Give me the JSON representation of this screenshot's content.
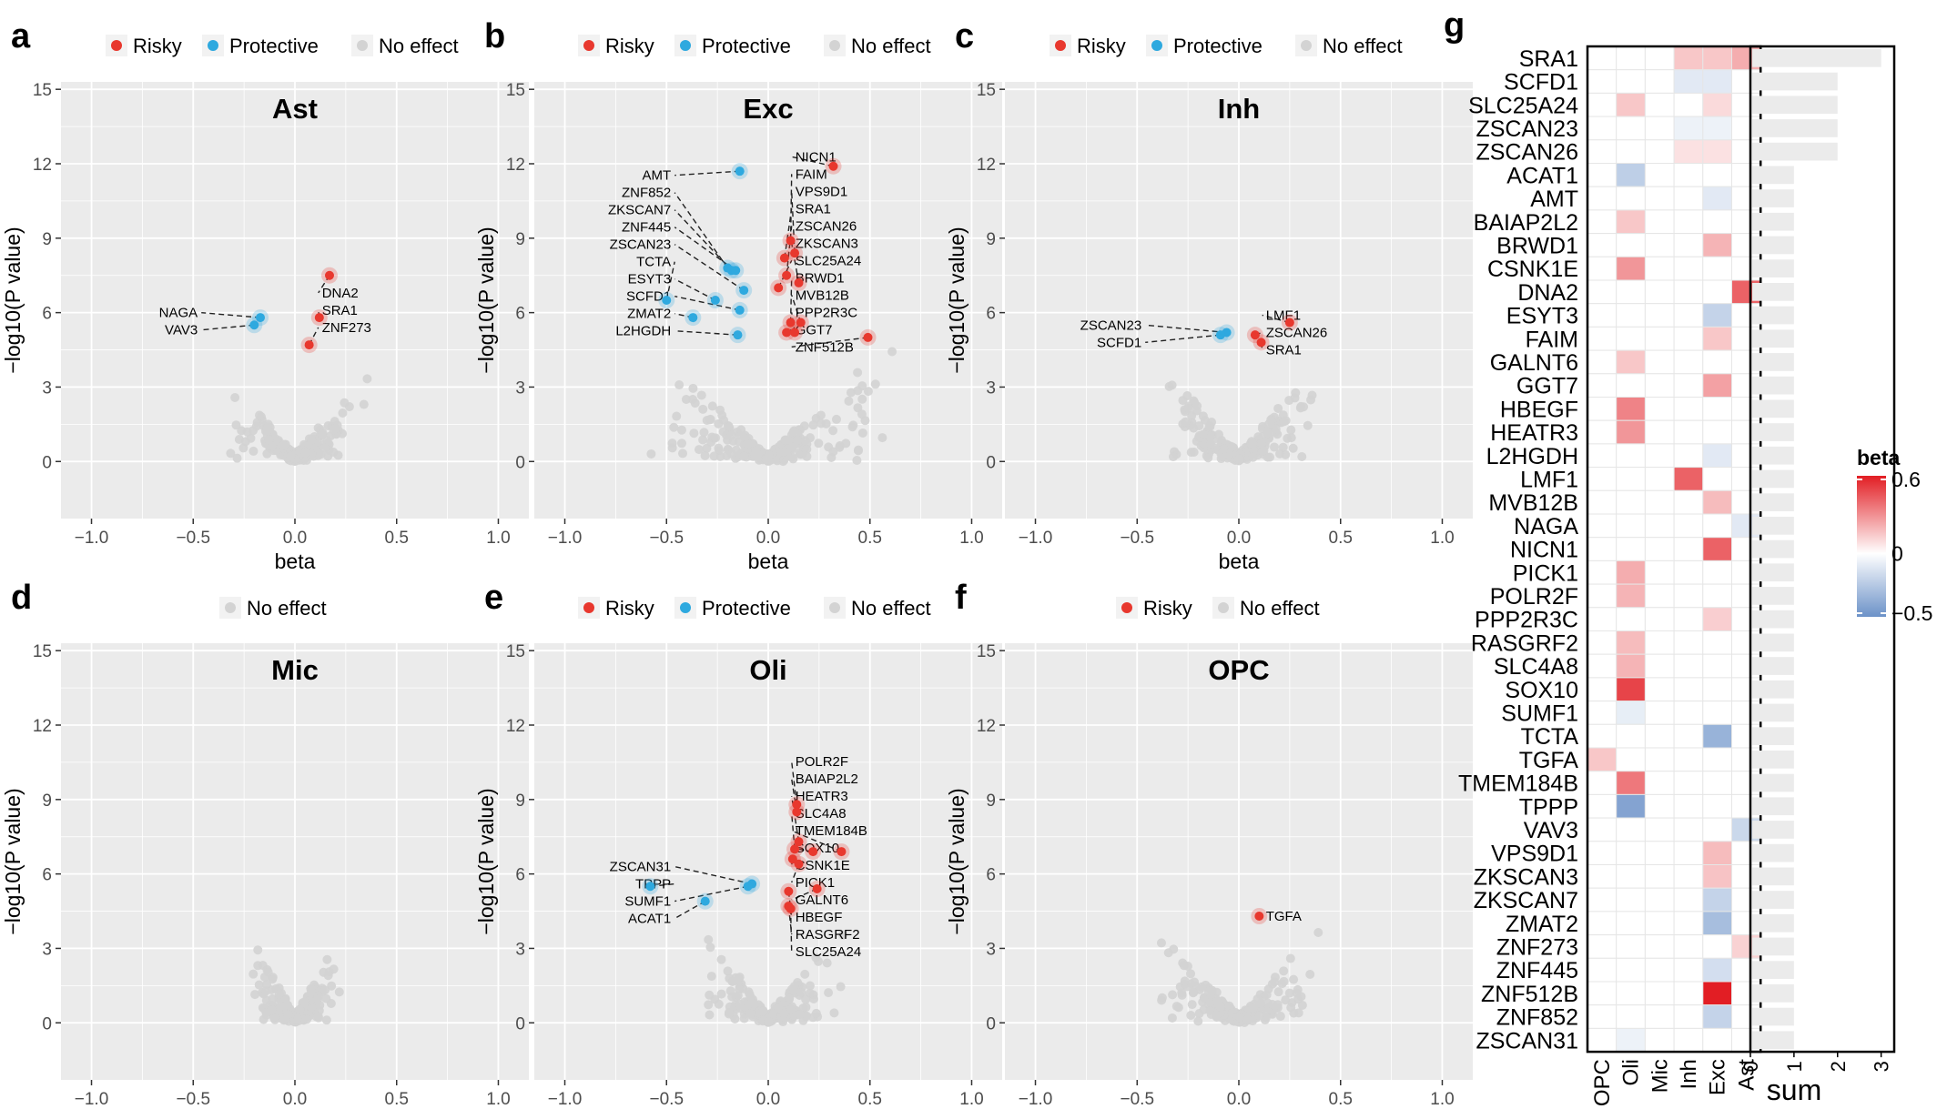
{
  "figure": {
    "panel_letters": [
      "a",
      "b",
      "c",
      "d",
      "e",
      "f",
      "g"
    ],
    "legend_labels": {
      "risky": "Risky",
      "protective": "Protective",
      "none": "No effect"
    },
    "colors": {
      "risky": "#e8382e",
      "protective": "#2ea9df",
      "none": "#d3d3d3",
      "panel_bg": "#ebebeb",
      "grid": "#ffffff"
    }
  },
  "chart_data": [
    {
      "type": "scatter",
      "panel": "a",
      "title": "Ast",
      "xlabel": "beta",
      "ylabel": "−log10(P value)",
      "xlim": [
        -1.15,
        1.15
      ],
      "ylim": [
        -2.3,
        15.3
      ],
      "xticks": [
        "−1.0",
        "−0.5",
        "0.0",
        "0.5",
        "1.0"
      ],
      "yticks": [
        "0",
        "3",
        "6",
        "9",
        "12",
        "15"
      ],
      "legend": [
        "risky",
        "protective",
        "none"
      ],
      "null_cloud": {
        "x_spread": 0.38,
        "y_max": 3.5
      },
      "points": [
        {
          "gene": "DNA2",
          "beta": 0.17,
          "logp": 7.5,
          "effect": "risky",
          "side": "right"
        },
        {
          "gene": "SRA1",
          "beta": 0.12,
          "logp": 5.8,
          "effect": "risky",
          "side": "right"
        },
        {
          "gene": "ZNF273",
          "beta": 0.07,
          "logp": 4.7,
          "effect": "risky",
          "side": "right"
        },
        {
          "gene": "NAGA",
          "beta": -0.17,
          "logp": 5.8,
          "effect": "protective",
          "side": "left"
        },
        {
          "gene": "VAV3",
          "beta": -0.2,
          "logp": 5.5,
          "effect": "protective",
          "side": "left"
        }
      ]
    },
    {
      "type": "scatter",
      "panel": "b",
      "title": "Exc",
      "xlabel": "beta",
      "ylabel": "−log10(P value)",
      "xlim": [
        -1.15,
        1.15
      ],
      "ylim": [
        -2.3,
        15.3
      ],
      "xticks": [
        "−1.0",
        "−0.5",
        "0.0",
        "0.5",
        "1.0"
      ],
      "yticks": [
        "0",
        "3",
        "6",
        "9",
        "12",
        "15"
      ],
      "legend": [
        "risky",
        "protective",
        "none"
      ],
      "null_cloud": {
        "x_spread": 0.7,
        "y_max": 5.0
      },
      "points": [
        {
          "gene": "AMT",
          "beta": -0.14,
          "logp": 11.7,
          "effect": "protective",
          "side": "left"
        },
        {
          "gene": "NICN1",
          "beta": 0.32,
          "logp": 11.9,
          "effect": "risky",
          "side": "right"
        },
        {
          "gene": "FAIM",
          "beta": 0.11,
          "logp": 8.9,
          "effect": "risky",
          "side": "right"
        },
        {
          "gene": "SRA1",
          "beta": 0.08,
          "logp": 8.2,
          "effect": "risky",
          "side": "right"
        },
        {
          "gene": "VPS9D1",
          "beta": 0.13,
          "logp": 8.4,
          "effect": "risky",
          "side": "right"
        },
        {
          "gene": "ZKSCAN3",
          "beta": 0.15,
          "logp": 7.2,
          "effect": "risky",
          "side": "right"
        },
        {
          "gene": "ZSCAN26",
          "beta": 0.09,
          "logp": 7.5,
          "effect": "risky",
          "side": "right"
        },
        {
          "gene": "SLC25A24",
          "beta": 0.05,
          "logp": 7.0,
          "effect": "risky",
          "side": "right"
        },
        {
          "gene": "BRWD1",
          "beta": 0.11,
          "logp": 5.6,
          "effect": "risky",
          "side": "right"
        },
        {
          "gene": "MVB12B",
          "beta": 0.16,
          "logp": 5.6,
          "effect": "risky",
          "side": "right"
        },
        {
          "gene": "PPP2R3C",
          "beta": 0.13,
          "logp": 5.2,
          "effect": "risky",
          "side": "right"
        },
        {
          "gene": "ZNF512B",
          "beta": 0.49,
          "logp": 5.0,
          "effect": "risky",
          "side": "right"
        },
        {
          "gene": "GGT7",
          "beta": 0.09,
          "logp": 5.2,
          "effect": "risky",
          "side": "right"
        },
        {
          "gene": "ZNF852",
          "beta": -0.2,
          "logp": 7.8,
          "effect": "protective",
          "side": "left"
        },
        {
          "gene": "ZKSCAN7",
          "beta": -0.18,
          "logp": 7.7,
          "effect": "protective",
          "side": "left"
        },
        {
          "gene": "ZNF445",
          "beta": -0.16,
          "logp": 7.7,
          "effect": "protective",
          "side": "left"
        },
        {
          "gene": "ZSCAN23",
          "beta": -0.12,
          "logp": 6.9,
          "effect": "protective",
          "side": "left"
        },
        {
          "gene": "TCTA",
          "beta": -0.5,
          "logp": 6.5,
          "effect": "protective",
          "side": "left"
        },
        {
          "gene": "ESYT3",
          "beta": -0.26,
          "logp": 6.5,
          "effect": "protective",
          "side": "left"
        },
        {
          "gene": "ZMAT2",
          "beta": -0.37,
          "logp": 5.8,
          "effect": "protective",
          "side": "left"
        },
        {
          "gene": "SCFD1",
          "beta": -0.14,
          "logp": 6.1,
          "effect": "protective",
          "side": "left"
        },
        {
          "gene": "L2HGDH",
          "beta": -0.15,
          "logp": 5.1,
          "effect": "protective",
          "side": "left"
        }
      ]
    },
    {
      "type": "scatter",
      "panel": "c",
      "title": "Inh",
      "xlabel": "beta",
      "ylabel": "−log10(P value)",
      "xlim": [
        -1.15,
        1.15
      ],
      "ylim": [
        -2.3,
        15.3
      ],
      "xticks": [
        "−1.0",
        "−0.5",
        "0.0",
        "0.5",
        "1.0"
      ],
      "yticks": [
        "0",
        "3",
        "6",
        "9",
        "12",
        "15"
      ],
      "legend": [
        "risky",
        "protective",
        "none"
      ],
      "null_cloud": {
        "x_spread": 0.42,
        "y_max": 3.9
      },
      "points": [
        {
          "gene": "LMF1",
          "beta": 0.25,
          "logp": 5.6,
          "effect": "risky",
          "side": "right"
        },
        {
          "gene": "ZSCAN26",
          "beta": 0.08,
          "logp": 5.1,
          "effect": "risky",
          "side": "right"
        },
        {
          "gene": "SRA1",
          "beta": 0.11,
          "logp": 4.8,
          "effect": "risky",
          "side": "right"
        },
        {
          "gene": "ZSCAN23",
          "beta": -0.06,
          "logp": 5.2,
          "effect": "protective",
          "side": "left"
        },
        {
          "gene": "SCFD1",
          "beta": -0.09,
          "logp": 5.1,
          "effect": "protective",
          "side": "left"
        }
      ]
    },
    {
      "type": "scatter",
      "panel": "d",
      "title": "Mic",
      "xlabel": "beta",
      "ylabel": "−log10(P value)",
      "xlim": [
        -1.15,
        1.15
      ],
      "ylim": [
        -2.3,
        15.3
      ],
      "xticks": [
        "−1.0",
        "−0.5",
        "0.0",
        "0.5",
        "1.0"
      ],
      "yticks": [
        "0",
        "3",
        "6",
        "9",
        "12",
        "15"
      ],
      "legend": [
        "none"
      ],
      "null_cloud": {
        "x_spread": 0.25,
        "y_max": 3.6
      },
      "points": []
    },
    {
      "type": "scatter",
      "panel": "e",
      "title": "Oli",
      "xlabel": "beta",
      "ylabel": "−log10(P value)",
      "xlim": [
        -1.15,
        1.15
      ],
      "ylim": [
        -2.3,
        15.3
      ],
      "xticks": [
        "−1.0",
        "−0.5",
        "0.0",
        "0.5",
        "1.0"
      ],
      "yticks": [
        "0",
        "3",
        "6",
        "9",
        "12",
        "15"
      ],
      "legend": [
        "risky",
        "protective",
        "none"
      ],
      "null_cloud": {
        "x_spread": 0.4,
        "y_max": 4.3
      },
      "points": [
        {
          "gene": "POLR2F",
          "beta": 0.14,
          "logp": 8.8,
          "effect": "risky",
          "side": "right"
        },
        {
          "gene": "BAIAP2L2",
          "beta": 0.14,
          "logp": 8.5,
          "effect": "risky",
          "side": "right"
        },
        {
          "gene": "HEATR3",
          "beta": 0.15,
          "logp": 7.3,
          "effect": "risky",
          "side": "right"
        },
        {
          "gene": "SLC4A8",
          "beta": 0.13,
          "logp": 7.0,
          "effect": "risky",
          "side": "right"
        },
        {
          "gene": "TMEM184B",
          "beta": 0.36,
          "logp": 6.9,
          "effect": "risky",
          "side": "right"
        },
        {
          "gene": "SOX10",
          "beta": 0.22,
          "logp": 6.9,
          "effect": "risky",
          "side": "right"
        },
        {
          "gene": "CSNK1E",
          "beta": 0.12,
          "logp": 6.6,
          "effect": "risky",
          "side": "right"
        },
        {
          "gene": "PICK1",
          "beta": 0.15,
          "logp": 6.4,
          "effect": "risky",
          "side": "right"
        },
        {
          "gene": "GALNT6",
          "beta": 0.24,
          "logp": 5.4,
          "effect": "risky",
          "side": "right"
        },
        {
          "gene": "HBEGF",
          "beta": 0.1,
          "logp": 5.3,
          "effect": "risky",
          "side": "right"
        },
        {
          "gene": "RASGRF2",
          "beta": 0.1,
          "logp": 4.7,
          "effect": "risky",
          "side": "right"
        },
        {
          "gene": "SLC25A24",
          "beta": 0.11,
          "logp": 4.6,
          "effect": "risky",
          "side": "right"
        },
        {
          "gene": "ZSCAN31",
          "beta": -0.08,
          "logp": 5.6,
          "effect": "protective",
          "side": "left"
        },
        {
          "gene": "TPPP",
          "beta": -0.58,
          "logp": 5.5,
          "effect": "protective",
          "side": "left"
        },
        {
          "gene": "SUMF1",
          "beta": -0.1,
          "logp": 5.5,
          "effect": "protective",
          "side": "left"
        },
        {
          "gene": "ACAT1",
          "beta": -0.31,
          "logp": 4.9,
          "effect": "protective",
          "side": "left"
        }
      ]
    },
    {
      "type": "scatter",
      "panel": "f",
      "title": "OPC",
      "xlabel": "beta",
      "ylabel": "−log10(P value)",
      "xlim": [
        -1.15,
        1.15
      ],
      "ylim": [
        -2.3,
        15.3
      ],
      "xticks": [
        "−1.0",
        "−0.5",
        "0.0",
        "0.5",
        "1.0"
      ],
      "yticks": [
        "0",
        "3",
        "6",
        "9",
        "12",
        "15"
      ],
      "legend": [
        "risky",
        "none"
      ],
      "null_cloud": {
        "x_spread": 0.42,
        "y_max": 3.6
      },
      "points": [
        {
          "gene": "TGFA",
          "beta": 0.1,
          "logp": 4.3,
          "effect": "risky",
          "side": "right"
        }
      ]
    },
    {
      "type": "heatmap",
      "panel": "g",
      "columns": [
        "OPC",
        "Oli",
        "Mic",
        "Inh",
        "Exc",
        "Ast"
      ],
      "genes": [
        "SRA1",
        "SCFD1",
        "SLC25A24",
        "ZSCAN23",
        "ZSCAN26",
        "ACAT1",
        "AMT",
        "BAIAP2L2",
        "BRWD1",
        "CSNK1E",
        "DNA2",
        "ESYT3",
        "FAIM",
        "GALNT6",
        "GGT7",
        "HBEGF",
        "HEATR3",
        "L2HGDH",
        "LMF1",
        "MVB12B",
        "NAGA",
        "NICN1",
        "PICK1",
        "POLR2F",
        "PPP2R3C",
        "RASGRF2",
        "SLC4A8",
        "SOX10",
        "SUMF1",
        "TCTA",
        "TGFA",
        "TMEM184B",
        "TPPP",
        "VAV3",
        "VPS9D1",
        "ZKSCAN3",
        "ZKSCAN7",
        "ZMAT2",
        "ZNF273",
        "ZNF445",
        "ZNF512B",
        "ZNF852",
        "ZSCAN31"
      ],
      "values": [
        [
          null,
          null,
          null,
          0.15,
          0.15,
          0.22
        ],
        [
          null,
          null,
          null,
          -0.1,
          -0.1,
          null
        ],
        [
          null,
          0.15,
          null,
          null,
          0.1,
          null
        ],
        [
          null,
          null,
          null,
          -0.06,
          -0.06,
          null
        ],
        [
          null,
          null,
          null,
          0.08,
          0.08,
          null
        ],
        [
          null,
          -0.22,
          null,
          null,
          null,
          null
        ],
        [
          null,
          null,
          null,
          null,
          -0.1,
          null
        ],
        [
          null,
          0.15,
          null,
          null,
          null,
          null
        ],
        [
          null,
          null,
          null,
          null,
          0.2,
          null
        ],
        [
          null,
          0.28,
          null,
          null,
          null,
          null
        ],
        [
          null,
          null,
          null,
          null,
          null,
          0.42
        ],
        [
          null,
          null,
          null,
          null,
          -0.2,
          null
        ],
        [
          null,
          null,
          null,
          null,
          0.15,
          null
        ],
        [
          null,
          0.15,
          null,
          null,
          null,
          null
        ],
        [
          null,
          null,
          null,
          null,
          0.25,
          null
        ],
        [
          null,
          0.33,
          null,
          null,
          null,
          null
        ],
        [
          null,
          0.28,
          null,
          null,
          null,
          null
        ],
        [
          null,
          null,
          null,
          null,
          -0.1,
          null
        ],
        [
          null,
          null,
          null,
          0.42,
          null,
          null
        ],
        [
          null,
          null,
          null,
          null,
          0.18,
          null
        ],
        [
          null,
          null,
          null,
          null,
          null,
          -0.1
        ],
        [
          null,
          null,
          null,
          null,
          0.42,
          null
        ],
        [
          null,
          0.22,
          null,
          null,
          null,
          null
        ],
        [
          null,
          0.2,
          null,
          null,
          null,
          null
        ],
        [
          null,
          null,
          null,
          null,
          0.13,
          null
        ],
        [
          null,
          0.18,
          null,
          null,
          null,
          null
        ],
        [
          null,
          0.2,
          null,
          null,
          null,
          null
        ],
        [
          null,
          0.5,
          null,
          null,
          null,
          null
        ],
        [
          null,
          -0.08,
          null,
          null,
          null,
          null
        ],
        [
          null,
          null,
          null,
          null,
          -0.35,
          null
        ],
        [
          0.15,
          null,
          null,
          null,
          null,
          null
        ],
        [
          null,
          0.36,
          null,
          null,
          null,
          null
        ],
        [
          null,
          -0.42,
          null,
          null,
          null,
          null
        ],
        [
          null,
          null,
          null,
          null,
          null,
          -0.18
        ],
        [
          null,
          null,
          null,
          null,
          0.18,
          null
        ],
        [
          null,
          null,
          null,
          null,
          0.16,
          null
        ],
        [
          null,
          null,
          null,
          null,
          -0.2,
          null
        ],
        [
          null,
          null,
          null,
          null,
          -0.3,
          null
        ],
        [
          null,
          null,
          null,
          null,
          null,
          0.12
        ],
        [
          null,
          null,
          null,
          null,
          -0.15,
          null
        ],
        [
          null,
          null,
          null,
          null,
          0.6,
          null
        ],
        [
          null,
          null,
          null,
          null,
          -0.2,
          null
        ],
        [
          null,
          -0.06,
          null,
          null,
          null,
          null
        ]
      ],
      "sums": [
        3,
        2,
        2,
        2,
        2,
        1,
        1,
        1,
        1,
        1,
        1,
        1,
        1,
        1,
        1,
        1,
        1,
        1,
        1,
        1,
        1,
        1,
        1,
        1,
        1,
        1,
        1,
        1,
        1,
        1,
        1,
        1,
        1,
        1,
        1,
        1,
        1,
        1,
        1,
        1,
        1,
        1,
        1
      ],
      "sum_label": "sum",
      "sum_ticks": [
        "0",
        "1",
        "2",
        "3"
      ],
      "colorbar": {
        "title": "beta",
        "ticks": [
          "0.6",
          "0",
          "−0.5"
        ],
        "min": -0.5,
        "max": 0.6
      }
    }
  ]
}
